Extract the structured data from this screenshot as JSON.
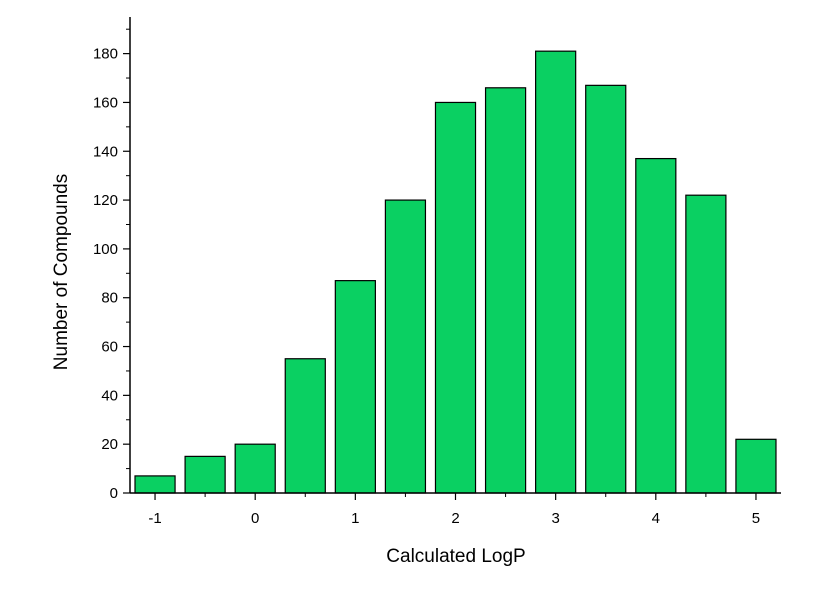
{
  "chart_data": {
    "type": "bar",
    "title": "",
    "xlabel": "Calculated LogP",
    "ylabel": "Number of Compounds",
    "x": [
      -1,
      -0.5,
      0,
      0.5,
      1,
      1.5,
      2,
      2.5,
      3,
      3.5,
      4,
      4.5,
      5
    ],
    "values": [
      7,
      15,
      20,
      55,
      87,
      120,
      160,
      166,
      181,
      167,
      137,
      122,
      22
    ],
    "xlim": [
      -1.25,
      5.25
    ],
    "ylim": [
      0,
      195
    ],
    "xticks": [
      -1,
      0,
      1,
      2,
      3,
      4,
      5
    ],
    "xtick_labels": [
      "-1",
      "0",
      "1",
      "2",
      "3",
      "4",
      "5"
    ],
    "yticks": [
      0,
      20,
      40,
      60,
      80,
      100,
      120,
      140,
      160,
      180
    ],
    "ytick_labels": [
      "0",
      "20",
      "40",
      "60",
      "80",
      "100",
      "120",
      "140",
      "160",
      "180"
    ],
    "bar_color": "#0ad062",
    "bar_edge_color": "#000000",
    "grid": false,
    "legend": "none"
  }
}
